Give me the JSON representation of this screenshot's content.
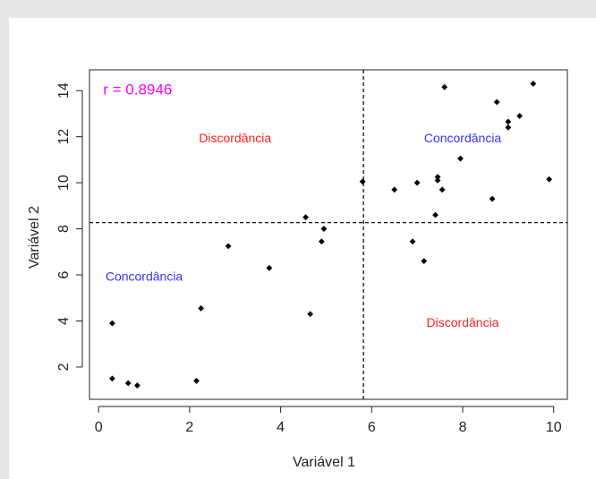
{
  "chart_data": {
    "type": "scatter",
    "title": "",
    "xlabel": "Variável 1",
    "ylabel": "Variável 2",
    "xlim": [
      -0.2,
      10.3
    ],
    "ylim": [
      0.6,
      14.9
    ],
    "x_ticks": [
      0,
      2,
      4,
      6,
      8,
      10
    ],
    "y_ticks": [
      2,
      4,
      6,
      8,
      10,
      12,
      14
    ],
    "grid": false,
    "points": [
      {
        "x": 0.3,
        "y": 1.5
      },
      {
        "x": 0.3,
        "y": 3.9
      },
      {
        "x": 0.65,
        "y": 1.3
      },
      {
        "x": 0.85,
        "y": 1.2
      },
      {
        "x": 2.15,
        "y": 1.4
      },
      {
        "x": 2.25,
        "y": 4.55
      },
      {
        "x": 2.85,
        "y": 7.25
      },
      {
        "x": 3.75,
        "y": 6.3
      },
      {
        "x": 4.55,
        "y": 8.5
      },
      {
        "x": 4.65,
        "y": 4.3
      },
      {
        "x": 4.9,
        "y": 7.45
      },
      {
        "x": 4.95,
        "y": 8.0
      },
      {
        "x": 5.8,
        "y": 10.05
      },
      {
        "x": 6.5,
        "y": 9.7
      },
      {
        "x": 6.9,
        "y": 7.45
      },
      {
        "x": 7.0,
        "y": 10.0
      },
      {
        "x": 7.15,
        "y": 6.6
      },
      {
        "x": 7.4,
        "y": 8.6
      },
      {
        "x": 7.45,
        "y": 10.1
      },
      {
        "x": 7.45,
        "y": 10.25
      },
      {
        "x": 7.55,
        "y": 9.7
      },
      {
        "x": 7.6,
        "y": 14.15
      },
      {
        "x": 7.95,
        "y": 11.05
      },
      {
        "x": 8.65,
        "y": 9.3
      },
      {
        "x": 8.75,
        "y": 13.5
      },
      {
        "x": 9.0,
        "y": 12.4
      },
      {
        "x": 9.0,
        "y": 12.65
      },
      {
        "x": 9.25,
        "y": 12.9
      },
      {
        "x": 9.55,
        "y": 14.3
      },
      {
        "x": 9.9,
        "y": 10.15
      }
    ],
    "reference_lines": {
      "vertical_x": 5.82,
      "horizontal_y": 8.27,
      "style": "dashed"
    },
    "annotations": [
      {
        "text": "r = 0.8946",
        "x": 0.1,
        "y": 14.0,
        "color": "#ff00ff",
        "anchor": "start"
      },
      {
        "text": "Discordância",
        "x": 3.0,
        "y": 11.9,
        "color": "#ff2020",
        "anchor": "middle"
      },
      {
        "text": "Concordância",
        "x": 8.0,
        "y": 11.9,
        "color": "#3333ff",
        "anchor": "middle"
      },
      {
        "text": "Concordância",
        "x": 1.0,
        "y": 5.9,
        "color": "#3333ff",
        "anchor": "middle"
      },
      {
        "text": "Discordância",
        "x": 8.0,
        "y": 3.9,
        "color": "#ff2020",
        "anchor": "middle"
      }
    ]
  },
  "colors": {
    "points": "#000000",
    "axis": "#222222",
    "background": "#ffffff"
  }
}
